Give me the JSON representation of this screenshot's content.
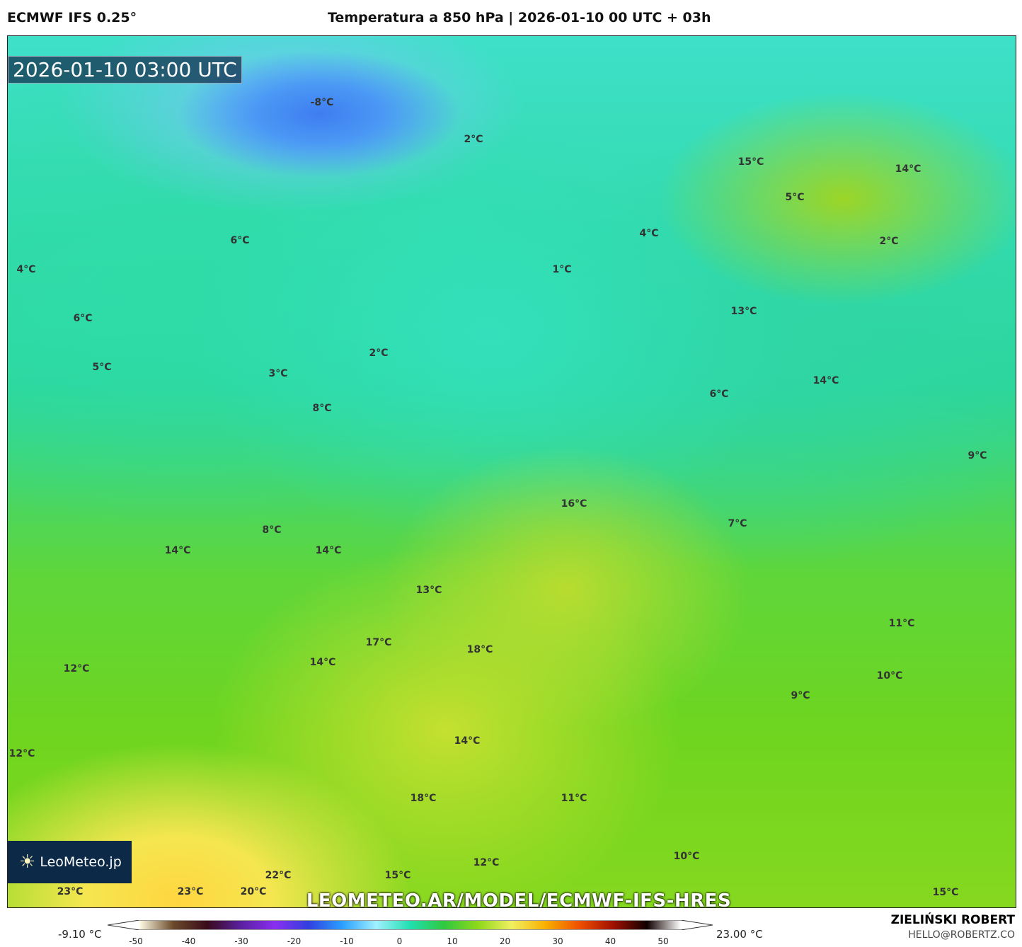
{
  "header": {
    "model": "ECMWF IFS 0.25°",
    "title": "Temperatura a 850 hPa | 2026-01-10 00 UTC + 03h"
  },
  "map": {
    "timestamp": "2026-01-10 03:00 UTC",
    "url_watermark": "LEOMETEO.AR/MODEL/ECMWF-IFS-HRES",
    "logo": "LeoMeteo.jp",
    "labels": [
      "-8°C",
      "2°C",
      "15°C",
      "14°C",
      "5°C",
      "4°C",
      "2°C",
      "6°C",
      "4°C",
      "1°C",
      "13°C",
      "6°C",
      "2°C",
      "5°C",
      "3°C",
      "14°C",
      "6°C",
      "8°C",
      "9°C",
      "16°C",
      "7°C",
      "8°C",
      "14°C",
      "14°C",
      "13°C",
      "11°C",
      "17°C",
      "18°C",
      "14°C",
      "12°C",
      "10°C",
      "9°C",
      "12°C",
      "14°C",
      "18°C",
      "11°C",
      "12°C",
      "10°C",
      "22°C",
      "15°C",
      "23°C",
      "23°C",
      "20°C",
      "15°C"
    ]
  },
  "legend": {
    "min": "-9.10 °C",
    "max": "23.00 °C",
    "ticks": [
      "-50",
      "-40",
      "-30",
      "-20",
      "-10",
      "0",
      "10",
      "20",
      "30",
      "40",
      "50"
    ],
    "colors": [
      "#fffbe6",
      "#6b4a2a",
      "#3a0a1a",
      "#5a20a0",
      "#8a2ef0",
      "#3040e0",
      "#2aa0ff",
      "#a0f0ff",
      "#20e0b0",
      "#30c840",
      "#8ed81a",
      "#f0f060",
      "#f8b000",
      "#f05000",
      "#a01000",
      "#100000",
      "#ffffff"
    ]
  },
  "author": {
    "name": "ZIELIŃSKI ROBERT",
    "email": "HELLO@ROBERTZ.CO"
  }
}
